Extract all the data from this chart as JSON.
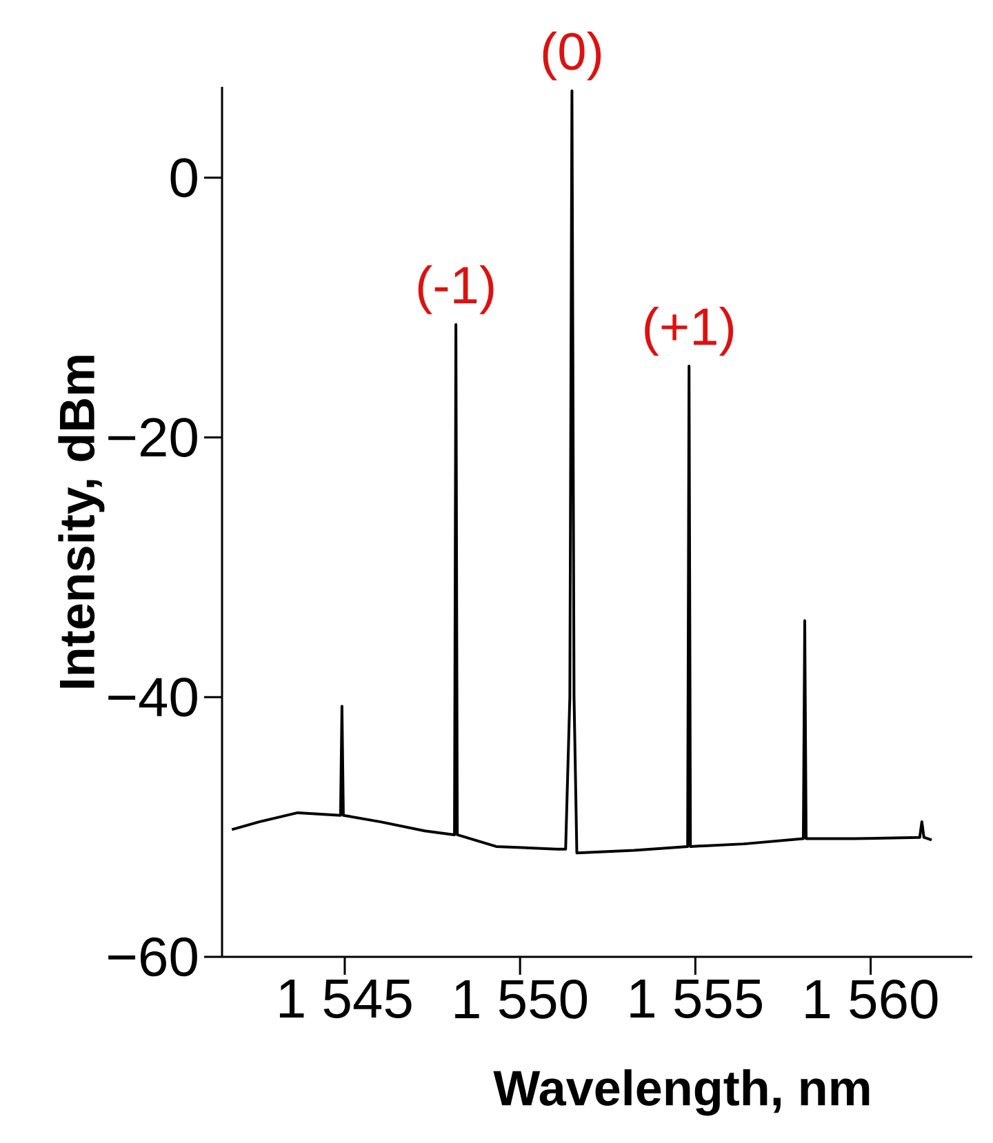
{
  "chart_data": {
    "type": "line",
    "xlabel": "Wavelength, nm",
    "ylabel": "Intensity, dBm",
    "color": "#000000",
    "x": [
      1541.78,
      1542.56,
      1543.66,
      1544.88,
      1544.92,
      1544.96,
      1546.02,
      1547.28,
      1548.13,
      1548.17,
      1548.21,
      1549.32,
      1551.05,
      1551.3,
      1551.42,
      1551.48,
      1551.54,
      1551.62,
      1553.25,
      1554.78,
      1554.82,
      1554.86,
      1556.39,
      1558.08,
      1558.12,
      1558.16,
      1559.54,
      1561.4,
      1561.46,
      1561.52,
      1561.74
    ],
    "values": [
      -50.2,
      -49.6,
      -48.9,
      -49.1,
      -40.7,
      -49.1,
      -49.6,
      -50.3,
      -50.6,
      -11.3,
      -50.6,
      -51.5,
      -51.7,
      -51.7,
      -40,
      6.7,
      -40,
      -52.0,
      -51.8,
      -51.5,
      -14.5,
      -51.5,
      -51.3,
      -50.9,
      -34.1,
      -50.9,
      -50.9,
      -50.8,
      -49.6,
      -50.8,
      -51.0
    ],
    "xlim": [
      1541.5,
      1562.9
    ],
    "ylim": [
      -60,
      7
    ],
    "xticks": [
      {
        "value": 1545,
        "label": "1 545"
      },
      {
        "value": 1550,
        "label": "1 550"
      },
      {
        "value": 1555,
        "label": "1 555"
      },
      {
        "value": 1560,
        "label": "1 560"
      }
    ],
    "yticks": [
      {
        "value": -60,
        "label": "−60"
      },
      {
        "value": -40,
        "label": "−40"
      },
      {
        "value": -20,
        "label": "−20"
      },
      {
        "value": 0,
        "label": "0"
      }
    ],
    "annotations": [
      {
        "text": "(-1)",
        "x": 1548.17,
        "y": -11.3
      },
      {
        "text": "(0)",
        "x": 1551.48,
        "y": 6.7
      },
      {
        "text": "(+1)",
        "x": 1554.82,
        "y": -14.5
      }
    ]
  }
}
